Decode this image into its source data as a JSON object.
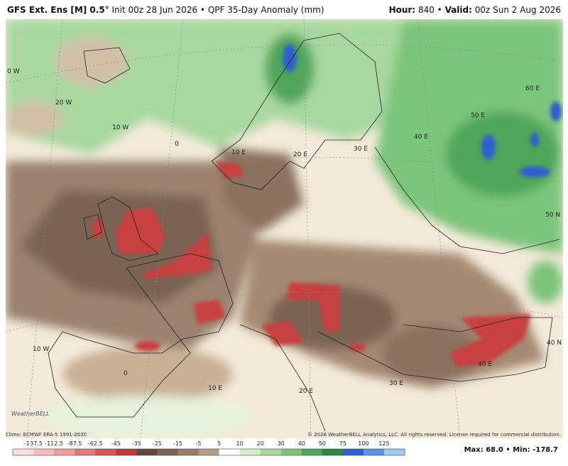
{
  "header": {
    "title": "GFS Ext. Ens [M] 0.5°",
    "init": "Init 00z 28 Jun 2026",
    "product": "QPF 35-Day Anomaly (mm)",
    "hour_label": "Hour:",
    "hour": "840",
    "valid_label": "Valid:",
    "valid": "00z Sun 2 Aug 2026"
  },
  "map": {
    "labels": [
      "0 W",
      "20 W",
      "10 W",
      "0",
      "10 E",
      "20 E",
      "30 E",
      "40 E",
      "50 E",
      "60 E",
      "50 N",
      "40 N",
      "10 W",
      "0",
      "10 E",
      "20 E",
      "30 E",
      "40 E"
    ],
    "logo": "WeatherBELL"
  },
  "footer": {
    "climo": "Climo: ECMWF ERA-5 1991-2020",
    "copyright": "© 2026 WeatherBELL Analytics, LLC. All rights reserved. License required for commercial distribution.",
    "max": "Max: 68.0",
    "min": "Min: -178.7"
  },
  "colorbar": {
    "labels": [
      -137.5,
      -112.5,
      -87.5,
      -62.5,
      -45,
      -35,
      -25,
      -15,
      -5,
      5,
      10,
      20,
      30,
      40,
      50,
      75,
      100,
      125
    ],
    "colors": [
      "#fbdede",
      "#f4bcbc",
      "#ec9c9c",
      "#e07a7a",
      "#d25858",
      "#bf3b3b",
      "#5e4a3e",
      "#7a6352",
      "#967d6a",
      "#b49c86",
      "#ffffff",
      "#d3ecc9",
      "#a9d89f",
      "#7dc37b",
      "#4fa65a",
      "#2c8644",
      "#2e5fcc",
      "#5a92e6",
      "#9cc9f2"
    ]
  }
}
